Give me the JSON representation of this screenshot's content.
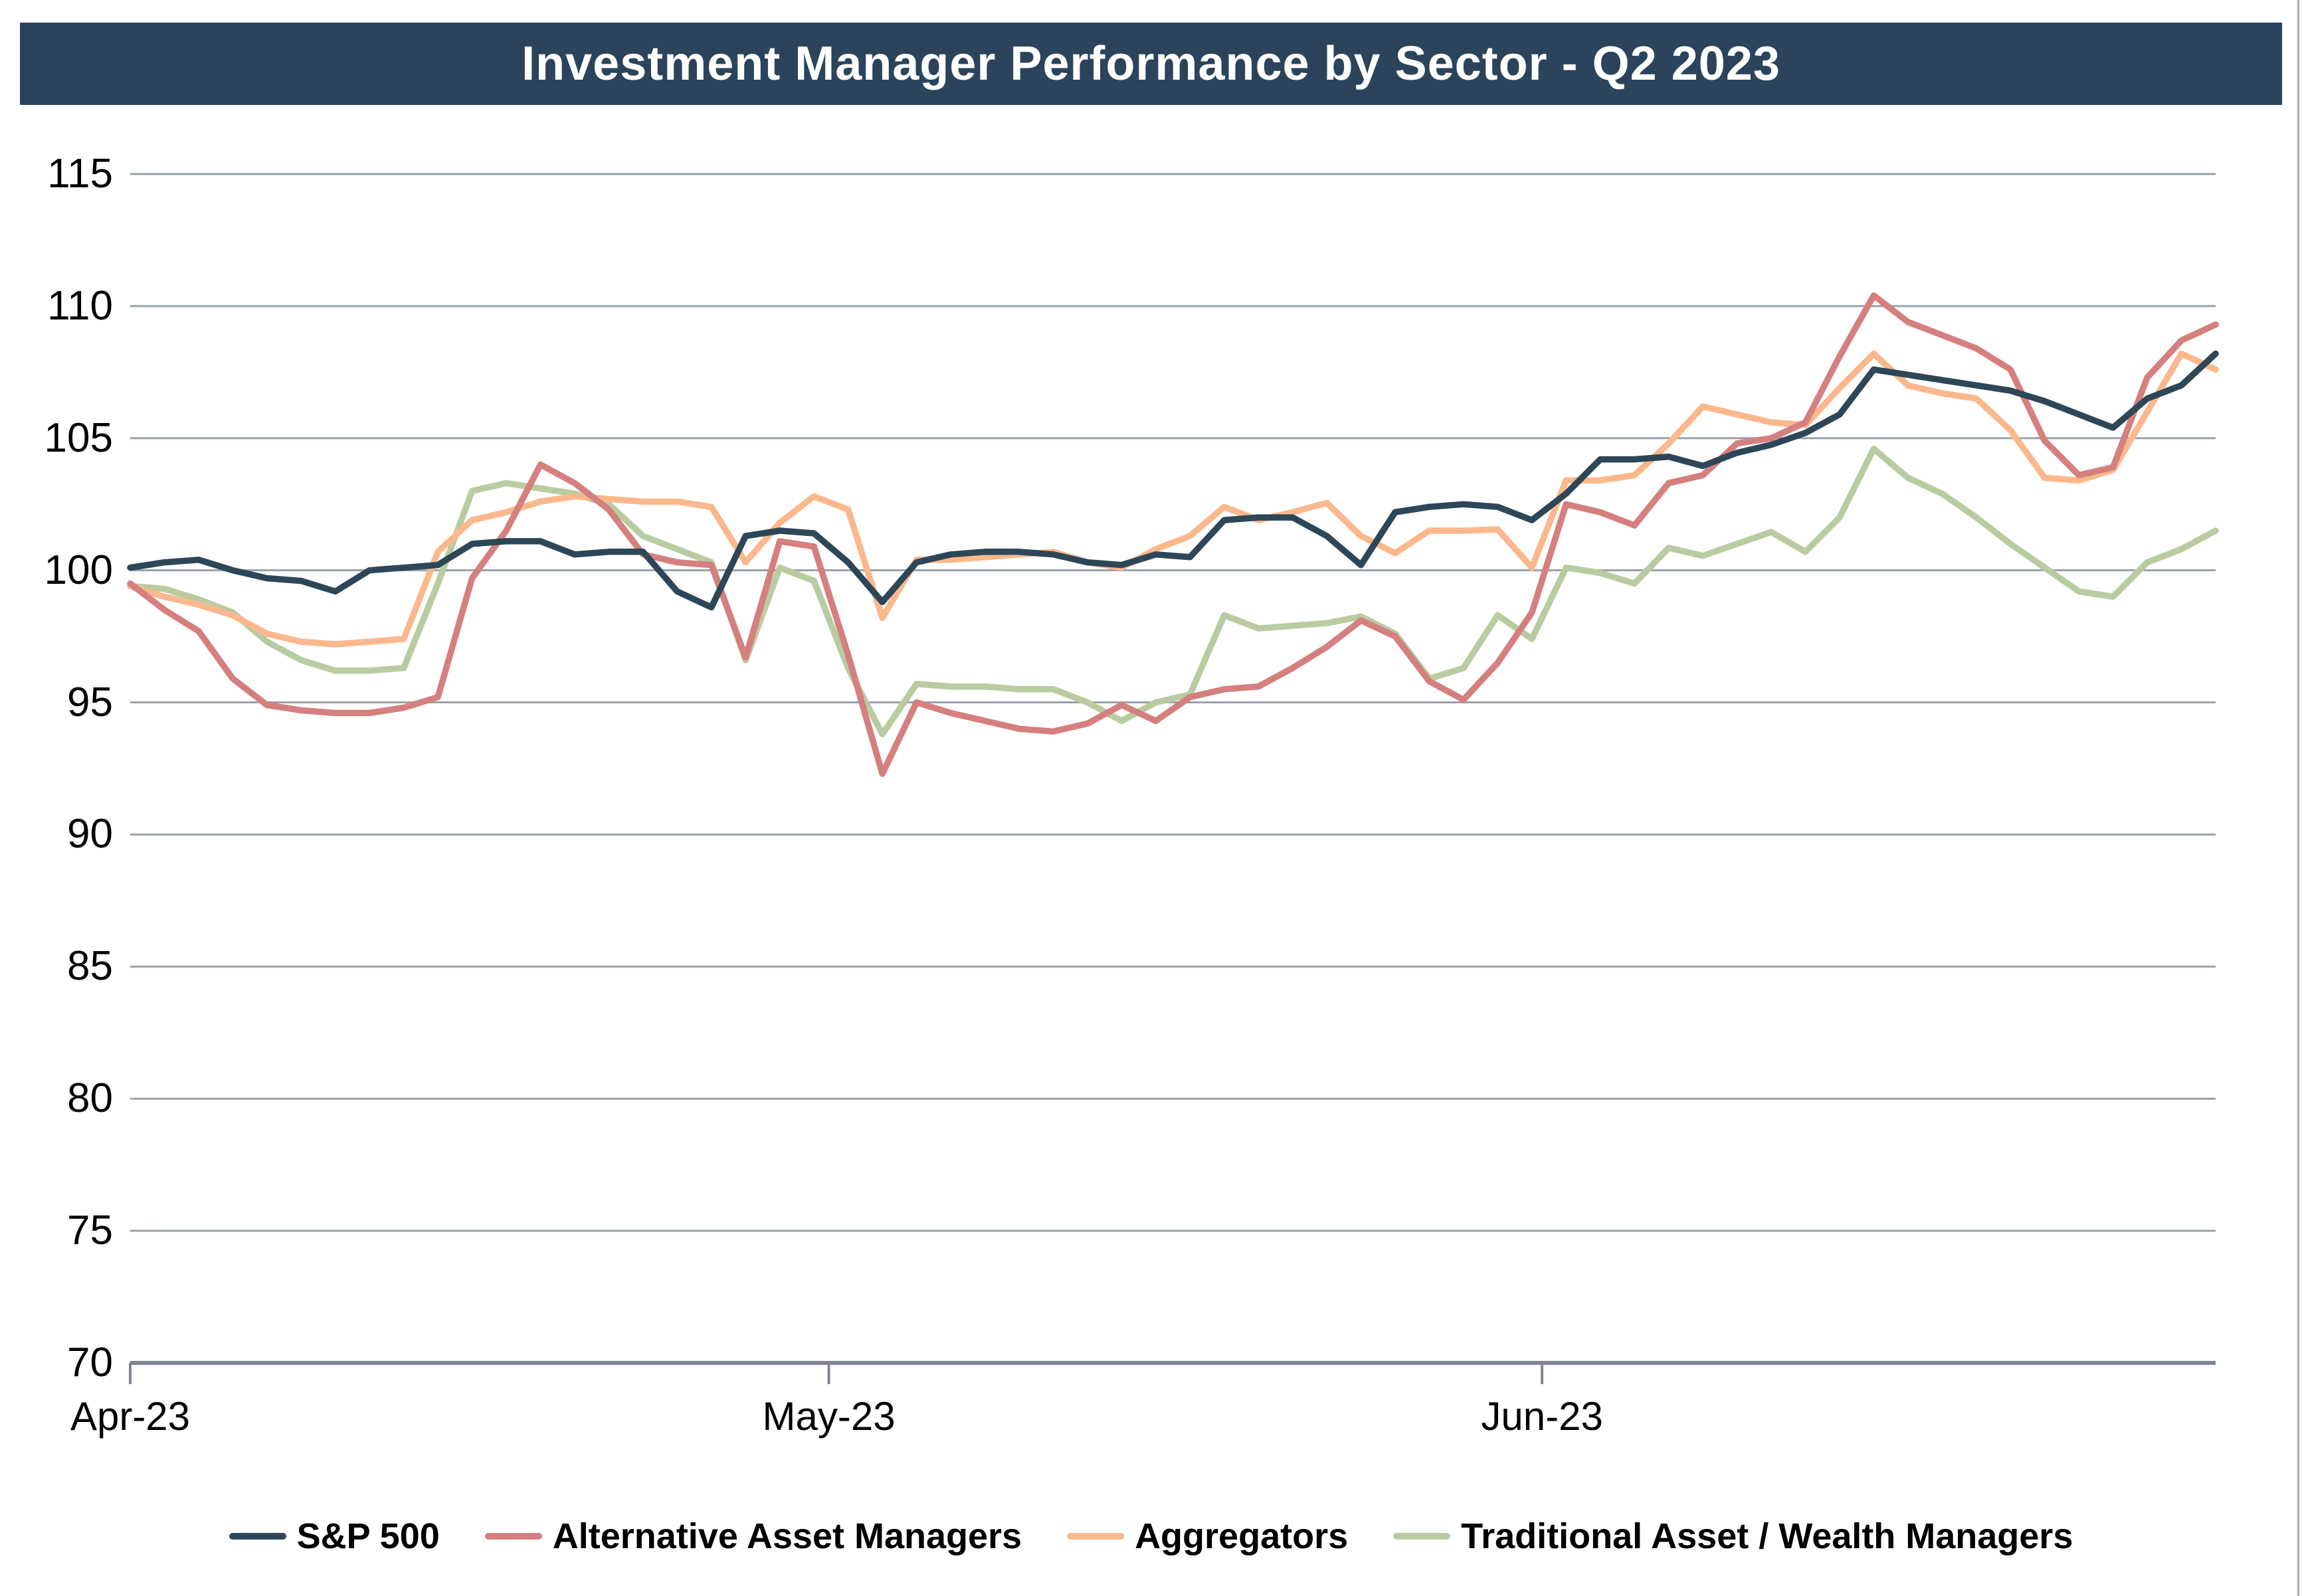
{
  "page": {
    "title": "Investment Manager Performance by Sector - Q2 2023"
  },
  "chart_data": {
    "type": "line",
    "title": "Investment Manager Performance by Sector - Q2 2023",
    "xlabel": "",
    "ylabel": "",
    "ylim": [
      70,
      115
    ],
    "yticks": [
      70,
      75,
      80,
      85,
      90,
      95,
      100,
      105,
      110,
      115
    ],
    "grid": "horizontal",
    "legend_position": "bottom",
    "x_ticks": [
      {
        "label": "Apr-23",
        "frac": 0.0
      },
      {
        "label": "May-23",
        "frac": 0.335
      },
      {
        "label": "Jun-23",
        "frac": 0.677
      }
    ],
    "x": [
      "Apr 3",
      "Apr 4",
      "Apr 5",
      "Apr 6",
      "Apr 10",
      "Apr 11",
      "Apr 12",
      "Apr 13",
      "Apr 14",
      "Apr 17",
      "Apr 18",
      "Apr 19",
      "Apr 20",
      "Apr 21",
      "Apr 24",
      "Apr 25",
      "Apr 26",
      "Apr 27",
      "Apr 28",
      "May 1",
      "May 2",
      "May 3",
      "May 4",
      "May 5",
      "May 8",
      "May 9",
      "May 10",
      "May 11",
      "May 12",
      "May 15",
      "May 16",
      "May 17",
      "May 18",
      "May 19",
      "May 22",
      "May 23",
      "May 24",
      "May 25",
      "May 26",
      "May 30",
      "May 31",
      "Jun 1",
      "Jun 2",
      "Jun 5",
      "Jun 6",
      "Jun 7",
      "Jun 8",
      "Jun 9",
      "Jun 12",
      "Jun 13",
      "Jun 14",
      "Jun 15",
      "Jun 16",
      "Jun 20",
      "Jun 21",
      "Jun 22",
      "Jun 23",
      "Jun 26",
      "Jun 27",
      "Jun 28",
      "Jun 29",
      "Jun 30"
    ],
    "series": [
      {
        "name": "S&P 500",
        "color": "#2D4758",
        "values": [
          100.1,
          100.3,
          100.4,
          100.0,
          99.7,
          99.6,
          99.2,
          100.0,
          100.1,
          100.2,
          101.0,
          101.1,
          101.1,
          100.6,
          100.7,
          100.7,
          99.2,
          98.6,
          101.3,
          101.5,
          101.4,
          100.3,
          98.8,
          100.3,
          100.6,
          100.7,
          100.7,
          100.6,
          100.3,
          100.2,
          100.6,
          100.5,
          101.9,
          102.0,
          102.0,
          101.3,
          100.2,
          102.2,
          102.4,
          102.5,
          102.4,
          101.9,
          102.9,
          104.2,
          104.2,
          104.3,
          103.95,
          104.45,
          104.75,
          105.2,
          105.9,
          107.6,
          107.4,
          107.2,
          107.0,
          106.8,
          106.4,
          105.9,
          105.4,
          106.5,
          107.0,
          108.2
        ]
      },
      {
        "name": "Alternative Asset Managers",
        "color": "#D57F7F",
        "values": [
          99.5,
          98.5,
          97.7,
          95.9,
          94.9,
          94.7,
          94.6,
          94.6,
          94.8,
          95.2,
          99.7,
          101.5,
          104.0,
          103.3,
          102.3,
          100.6,
          100.3,
          100.2,
          96.7,
          101.1,
          100.9,
          96.8,
          92.3,
          95.0,
          94.6,
          94.3,
          94.0,
          93.9,
          94.2,
          94.9,
          94.3,
          95.2,
          95.5,
          95.6,
          96.3,
          97.1,
          98.1,
          97.5,
          95.8,
          95.1,
          96.5,
          98.4,
          102.5,
          102.2,
          101.7,
          103.3,
          103.6,
          104.8,
          105.0,
          105.6,
          108.1,
          110.4,
          109.4,
          108.9,
          108.4,
          107.6,
          104.9,
          103.6,
          103.9,
          107.3,
          108.7,
          109.3
        ]
      },
      {
        "name": "Aggregators",
        "color": "#FBB88C",
        "values": [
          99.4,
          99.0,
          98.7,
          98.3,
          97.6,
          97.3,
          97.2,
          97.3,
          97.4,
          100.7,
          101.9,
          102.2,
          102.6,
          102.8,
          102.7,
          102.6,
          102.6,
          102.4,
          100.3,
          101.8,
          102.8,
          102.3,
          98.2,
          100.4,
          100.4,
          100.5,
          100.6,
          100.7,
          100.3,
          100.1,
          100.8,
          101.3,
          102.4,
          101.9,
          102.2,
          102.55,
          101.3,
          100.65,
          101.5,
          101.5,
          101.55,
          100.1,
          103.4,
          103.4,
          103.6,
          104.8,
          106.2,
          105.9,
          105.6,
          105.5,
          106.9,
          108.2,
          107.0,
          106.7,
          106.5,
          105.3,
          103.5,
          103.4,
          103.8,
          106.0,
          108.2,
          107.6
        ]
      },
      {
        "name": "Traditional Asset / Wealth Managers",
        "color": "#B9CCA1",
        "values": [
          99.4,
          99.3,
          98.9,
          98.4,
          97.3,
          96.6,
          96.2,
          96.2,
          96.3,
          99.5,
          103.0,
          103.3,
          103.1,
          102.9,
          102.5,
          101.3,
          100.8,
          100.3,
          96.6,
          100.1,
          99.6,
          96.3,
          93.8,
          95.7,
          95.6,
          95.6,
          95.5,
          95.5,
          95.0,
          94.3,
          95.0,
          95.3,
          98.3,
          97.8,
          97.9,
          98.0,
          98.25,
          97.6,
          95.9,
          96.3,
          98.3,
          97.4,
          100.1,
          99.9,
          99.5,
          100.85,
          100.55,
          101.0,
          101.45,
          100.7,
          102.0,
          104.6,
          103.5,
          102.9,
          102.0,
          101.0,
          100.1,
          99.2,
          99.0,
          100.3,
          100.8,
          101.5
        ]
      }
    ],
    "style": {
      "gridline_color": "#9AA1AB",
      "axis_color": "#7E8690",
      "title_bar_color": "#2B445C",
      "background_color": "#FFFFFF"
    }
  }
}
